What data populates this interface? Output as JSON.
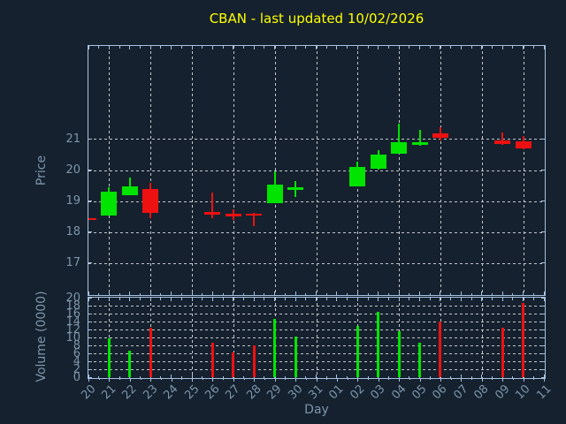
{
  "title": "CBAN - last updated 10/02/2026",
  "axes": {
    "price_label": "Price",
    "volume_label": "Volume (0000)",
    "x_label": "Day",
    "price_ticks": [
      21,
      20,
      19,
      18,
      17
    ],
    "price_range": [
      16,
      24
    ],
    "volume_ticks": [
      20,
      18,
      16,
      14,
      12,
      10,
      8,
      6,
      4,
      2,
      0
    ],
    "volume_range": [
      0,
      20
    ],
    "grid": "on",
    "x_grid_day_indices": [
      1,
      3,
      5,
      7,
      9,
      11,
      13,
      15,
      17,
      19,
      21
    ]
  },
  "colors": {
    "background": "#15212e",
    "title": "#ffff00",
    "axis_border": "#a6c2e2",
    "tick_label": "#7d95ac",
    "grid": "#c3c7cb",
    "up": "#00e400",
    "down": "#ee1111"
  },
  "chart_data": {
    "type": "candlestick-with-volume",
    "title": "CBAN - last updated 10/02/2026",
    "xlabel": "Day",
    "ylabel_price": "Price",
    "ylabel_volume": "Volume (0000)",
    "x_categories": [
      "20",
      "21",
      "22",
      "23",
      "24",
      "25",
      "26",
      "27",
      "28",
      "29",
      "30",
      "31",
      "01",
      "02",
      "03",
      "04",
      "05",
      "06",
      "07",
      "08",
      "09",
      "10",
      "11"
    ],
    "candles": [
      {
        "day": "20",
        "i": 0,
        "open": 18.45,
        "high": 18.46,
        "low": 18.4,
        "close": 18.41,
        "dir": "down",
        "volume": 0
      },
      {
        "day": "21",
        "i": 1,
        "open": 18.53,
        "high": 19.45,
        "low": 18.53,
        "close": 19.3,
        "dir": "up",
        "volume": 9.8
      },
      {
        "day": "22",
        "i": 2,
        "open": 19.18,
        "high": 19.77,
        "low": 19.18,
        "close": 19.48,
        "dir": "up",
        "volume": 6.7
      },
      {
        "day": "23",
        "i": 3,
        "open": 19.39,
        "high": 19.58,
        "low": 18.44,
        "close": 18.62,
        "dir": "down",
        "volume": 12.4
      },
      {
        "day": "26",
        "i": 6,
        "open": 18.65,
        "high": 19.28,
        "low": 18.45,
        "close": 18.57,
        "dir": "down",
        "volume": 8.6
      },
      {
        "day": "27",
        "i": 7,
        "open": 18.58,
        "high": 18.74,
        "low": 18.38,
        "close": 18.5,
        "dir": "down",
        "volume": 6.3
      },
      {
        "day": "28",
        "i": 8,
        "open": 18.6,
        "high": 18.62,
        "low": 18.2,
        "close": 18.52,
        "dir": "down",
        "volume": 7.9
      },
      {
        "day": "29",
        "i": 9,
        "open": 18.92,
        "high": 19.96,
        "low": 18.92,
        "close": 19.53,
        "dir": "up",
        "volume": 14.7
      },
      {
        "day": "30",
        "i": 10,
        "open": 19.42,
        "high": 19.64,
        "low": 19.12,
        "close": 19.44,
        "dir": "up",
        "volume": 10.3
      },
      {
        "day": "02",
        "i": 13,
        "open": 19.46,
        "high": 20.26,
        "low": 19.46,
        "close": 20.09,
        "dir": "up",
        "volume": 13.0
      },
      {
        "day": "03",
        "i": 14,
        "open": 20.05,
        "high": 20.65,
        "low": 20.0,
        "close": 20.49,
        "dir": "up",
        "volume": 16.5
      },
      {
        "day": "04",
        "i": 15,
        "open": 20.54,
        "high": 21.5,
        "low": 20.54,
        "close": 20.89,
        "dir": "up",
        "volume": 11.6
      },
      {
        "day": "05",
        "i": 16,
        "open": 20.87,
        "high": 21.29,
        "low": 20.79,
        "close": 20.89,
        "dir": "up",
        "volume": 8.6
      },
      {
        "day": "06",
        "i": 17,
        "open": 21.18,
        "high": 21.39,
        "low": 20.96,
        "close": 21.03,
        "dir": "down",
        "volume": 14.0
      },
      {
        "day": "09",
        "i": 20,
        "open": 20.96,
        "high": 21.22,
        "low": 20.82,
        "close": 20.83,
        "dir": "down",
        "volume": 12.4
      },
      {
        "day": "10",
        "i": 21,
        "open": 20.92,
        "high": 21.1,
        "low": 20.68,
        "close": 20.71,
        "dir": "down",
        "volume": 18.7
      }
    ]
  }
}
